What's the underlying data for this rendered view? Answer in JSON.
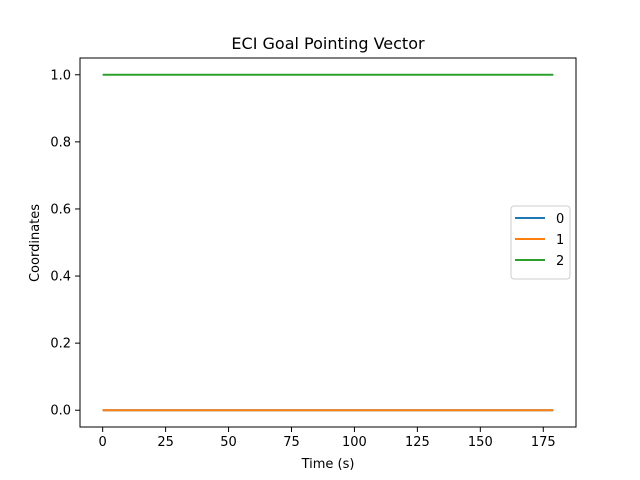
{
  "chart_data": {
    "type": "line",
    "title": "ECI Goal Pointing Vector",
    "xlabel": "Time (s)",
    "ylabel": "Coordinates",
    "xlim": [
      -9,
      188
    ],
    "ylim": [
      -0.05,
      1.05
    ],
    "xticks": [
      0,
      25,
      50,
      75,
      100,
      125,
      150,
      175
    ],
    "xtick_labels": [
      "0",
      "25",
      "50",
      "75",
      "100",
      "125",
      "150",
      "175"
    ],
    "yticks": [
      0.0,
      0.2,
      0.4,
      0.6,
      0.8,
      1.0
    ],
    "ytick_labels": [
      "0.0",
      "0.2",
      "0.4",
      "0.6",
      "0.8",
      "1.0"
    ],
    "grid": false,
    "legend_position": "center-right",
    "series": [
      {
        "name": "0",
        "color": "#1f77b4",
        "x": [
          0,
          179
        ],
        "y": [
          0,
          0
        ]
      },
      {
        "name": "1",
        "color": "#ff7f0e",
        "x": [
          0,
          179
        ],
        "y": [
          0,
          0
        ]
      },
      {
        "name": "2",
        "color": "#2ca02c",
        "x": [
          0,
          179
        ],
        "y": [
          1,
          1
        ]
      }
    ]
  }
}
